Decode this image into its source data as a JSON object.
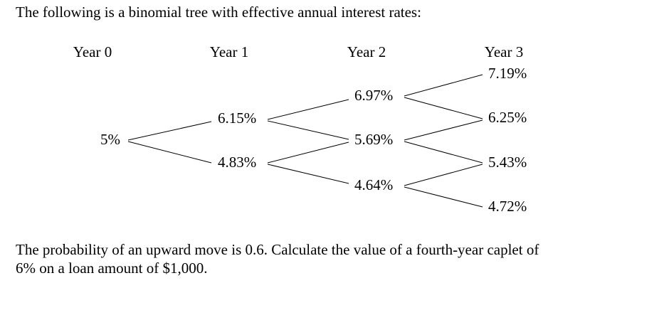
{
  "intro": "The following is a binomial tree with effective annual interest rates:",
  "columns": [
    "Year 0",
    "Year 1",
    "Year 2",
    "Year 3"
  ],
  "nodes": [
    {
      "label": "5%"
    },
    {
      "label": "6.15%"
    },
    {
      "label": "4.83%"
    },
    {
      "label": "6.97%"
    },
    {
      "label": "5.69%"
    },
    {
      "label": "4.64%"
    },
    {
      "label": "7.19%"
    },
    {
      "label": "6.25%"
    },
    {
      "label": "5.43%"
    },
    {
      "label": "4.72%"
    }
  ],
  "question": [
    "The probability of an upward move is 0.6. Calculate the value of a fourth-year caplet of",
    "6% on a loan amount of $1,000."
  ]
}
